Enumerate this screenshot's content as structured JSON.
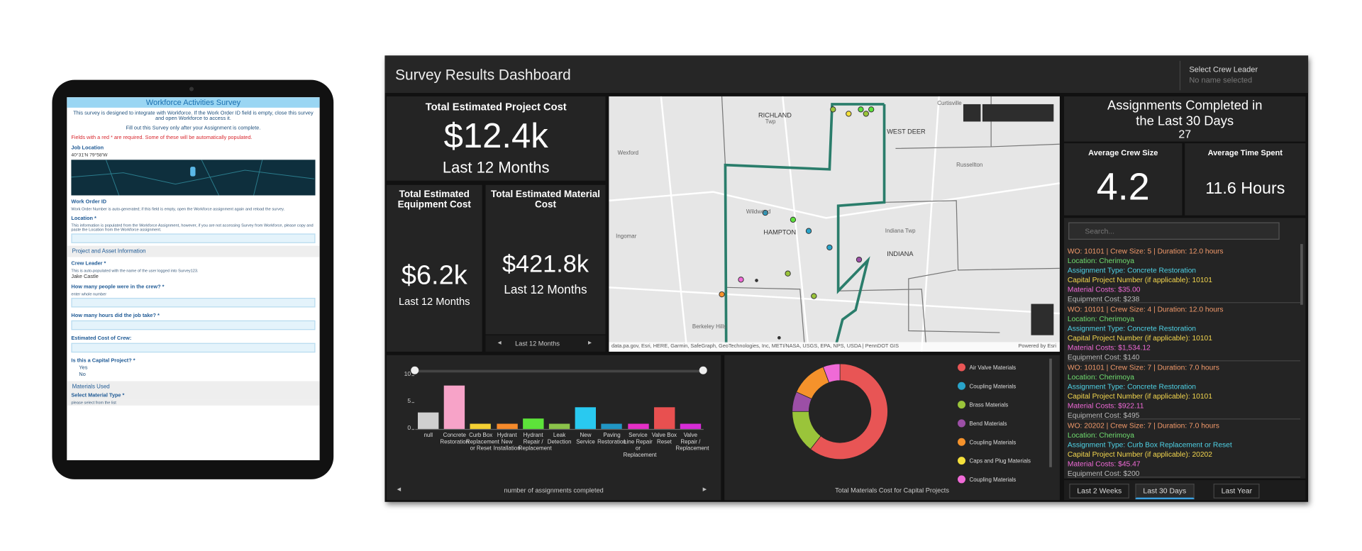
{
  "tablet": {
    "title": "Workforce Activities Survey",
    "intro": "This survey is designed to integrate with Workforce. If the Work Order ID field is empty, close this survey and open Workforce to access it.",
    "instruction": "Fill out this Survey only after your Assignment is complete.",
    "required_note": "Fields with a red * are required. Some of these will be automatically populated.",
    "job_location_label": "Job Location",
    "coordinates": "40°31'N 79°58'W",
    "work_order_label": "Work Order ID",
    "work_order_hint": "Work Order Number is auto-generated; if this field is empty, open the Workforce assignment again and reload the survey.",
    "location_label": "Location *",
    "location_hint": "This information is populated from the Workforce Assignment, however, if you are not accessing Survey from Workforce, please copy and paste the Location from the Workforce assignment.",
    "section1": "Project and Asset Information",
    "crew_leader_label": "Crew Leader *",
    "crew_leader_hint": "This is auto-populated with the name of the user logged into Survey123.",
    "crew_leader_value": "Jake Castle",
    "crew_count_label": "How many people were in the crew? *",
    "crew_count_hint": "enter whole number",
    "hours_label": "How many hours did the job take? *",
    "cost_label": "Estimated Cost of Crew:",
    "capital_label": "Is this a Capital Project? *",
    "yes": "Yes",
    "no": "No",
    "section2": "Materials Used",
    "material_label": "Select Material Type *",
    "material_hint": "please select from the list"
  },
  "dashboard": {
    "title": "Survey Results Dashboard",
    "crew_selector": {
      "label": "Select Crew Leader",
      "placeholder": "No name selected"
    },
    "project_cost": {
      "title": "Total Estimated Project Cost",
      "value": "$12.4k",
      "subtitle": "Last 12 Months"
    },
    "equipment_cost": {
      "title": "Total Estimated Equipment Cost",
      "value": "$6.2k",
      "subtitle": "Last 12 Months"
    },
    "material_cost": {
      "title": "Total Estimated Material Cost",
      "value": "$421.8k",
      "subtitle": "Last 12 Months"
    },
    "period_selector": "Last 12 Months",
    "assignments": {
      "title": "Assignments Completed in the Last 30 Days",
      "value": 27
    },
    "avg_crew": {
      "title": "Average Crew Size",
      "value": 4.2
    },
    "avg_time": {
      "title": "Average Time Spent",
      "value": "11.6 Hours"
    },
    "search_placeholder": "Search...",
    "assignment_list": [
      {
        "wo": "WO: 10101 | Crew Size: 5 | Duration: 12.0 hours",
        "location": "Location: Cherimoya",
        "type": "Assignment Type: Concrete Restoration",
        "capital": "Capital Project Number (if applicable): 10101",
        "material": "Material Costs: $35.00",
        "equipment": "Equipment Cost: $238"
      },
      {
        "wo": "WO: 10101 | Crew Size: 4 | Duration: 12.0 hours",
        "location": "Location: Cherimoya",
        "type": "Assignment Type: Concrete Restoration",
        "capital": "Capital Project Number (if applicable): 10101",
        "material": "Material Costs: $1,534.12",
        "equipment": "Equipment Cost: $140"
      },
      {
        "wo": "WO: 10101 | Crew Size: 7 | Duration: 7.0 hours",
        "location": "Location: Cherimoya",
        "type": "Assignment Type: Concrete Restoration",
        "capital": "Capital Project Number (if applicable): 10101",
        "material": "Material Costs: $922.11",
        "equipment": "Equipment Cost: $495"
      },
      {
        "wo": "WO: 20202 | Crew Size: 7 | Duration: 7.0 hours",
        "location": "Location: Cherimoya",
        "type": "Assignment Type: Curb Box Replacement or Reset",
        "capital": "Capital Project Number (if applicable): 20202",
        "material": "Material Costs: $45.47",
        "equipment": "Equipment Cost: $200"
      }
    ],
    "tabs": [
      "Last 2 Weeks",
      "Last 30 Days",
      "Last Year"
    ],
    "map": {
      "labels": [
        "RICHLAND",
        "Twp",
        "WEST DEER",
        "Wexford",
        "Wildwood",
        "HAMPTON",
        "Indiana Twp",
        "INDIANA",
        "Russellton",
        "Berkeley Hills",
        "Ingomar",
        "Curtisville"
      ],
      "attribution": "data.pa.gov, Esri, HERE, Garmin, SafeGraph, GeoTechnologies, Inc, METI/NASA, USGS, EPA, NPS, USDA | PennDOT GIS",
      "powered": "Powered by Esri"
    }
  },
  "chart_data": [
    {
      "type": "bar",
      "x_label": "number of assignments completed",
      "categories": [
        "null",
        "Concrete Restoration",
        "Curb Box Replacement or Reset",
        "Hydrant New Installation",
        "Hydrant Repair / Replacement",
        "Leak Detection",
        "New Service",
        "Paving Restoration",
        "Service Line Repair or Replacement",
        "Valve Box Reset",
        "Valve Repair / Replacement"
      ],
      "values": [
        3,
        8,
        1,
        1,
        2,
        1,
        4,
        1,
        1,
        4,
        1
      ],
      "colors": [
        "#cfcfcf",
        "#f7a3c8",
        "#f5d033",
        "#f58a2b",
        "#5de33a",
        "#8bc34a",
        "#29c9f0",
        "#2196c4",
        "#e52fc6",
        "#e85050",
        "#d72cd7"
      ],
      "ylim": [
        0,
        10
      ],
      "yticks": [
        0,
        5,
        10
      ],
      "grid": false
    },
    {
      "type": "pie",
      "title": "Total Materials Cost for Capital Projects",
      "categories": [
        "Air Valve Materials",
        "Coupling Materials",
        "Brass Materials",
        "Bend Materials",
        "Coupling Materials",
        "Caps and Plug Materials",
        "Coupling Materials"
      ],
      "values": [
        2445.76,
        0,
        582.67,
        270.6,
        505.6,
        0,
        231
      ],
      "value_labels": [
        "2,445.76",
        "0",
        "582.67",
        "270.6",
        "505.6",
        "0",
        "231"
      ],
      "colors": [
        "#e85555",
        "#29a3c9",
        "#9ac43a",
        "#9c4fa6",
        "#f5922b",
        "#f5e03b",
        "#f06ad7"
      ],
      "inner_radius_ratio": 0.65
    }
  ]
}
